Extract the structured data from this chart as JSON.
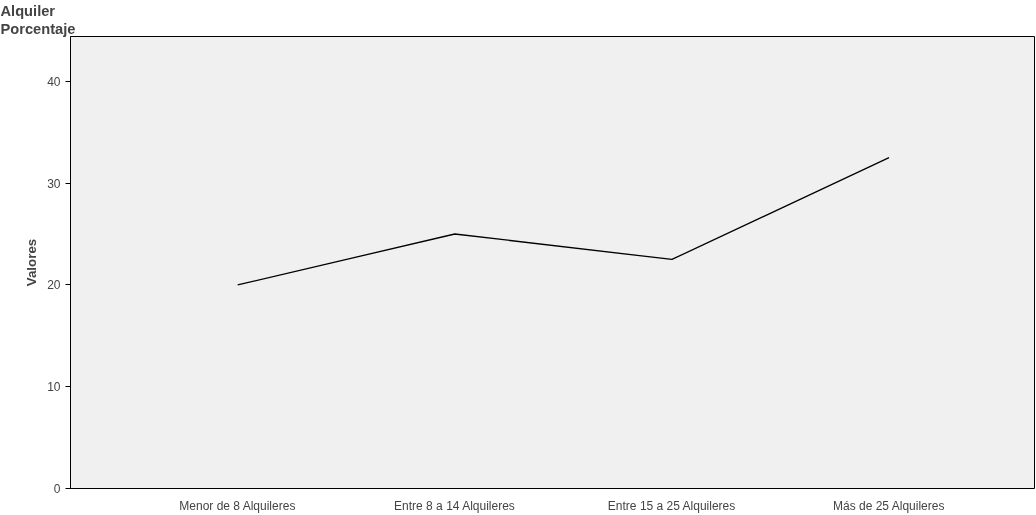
{
  "chart_data": {
    "type": "line",
    "title": "Alquiler",
    "subtitle": "Porcentaje",
    "ylabel": "Valores",
    "categories": [
      "Menor de 8 Alquileres",
      "Entre 8 a 14 Alquileres",
      "Entre 15 a 25 Alquileres",
      "Más de 25 Alquileres"
    ],
    "series": [
      {
        "color": "#000000",
        "values": [
          20,
          25,
          22.5,
          32.5
        ]
      }
    ],
    "ylim": [
      0,
      44.4
    ],
    "yticks": [
      0,
      10,
      20,
      30,
      40
    ],
    "grid": false,
    "marker": "none",
    "line_style": "solid"
  }
}
